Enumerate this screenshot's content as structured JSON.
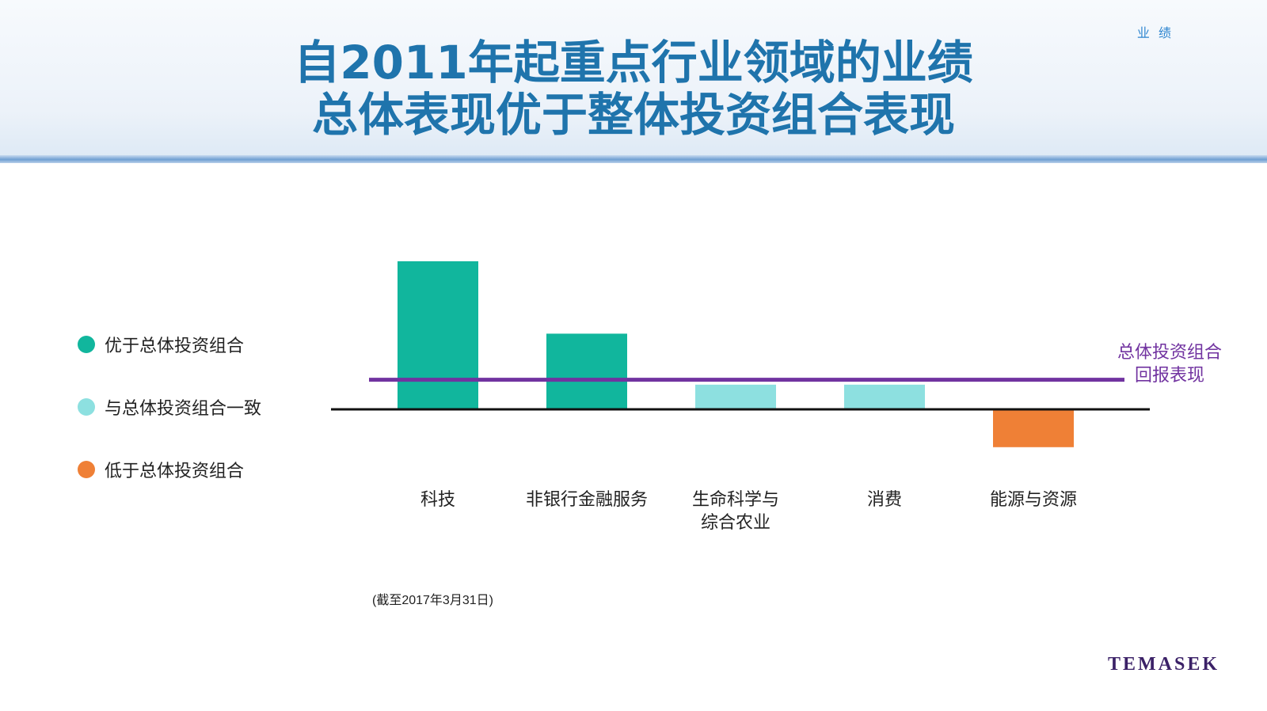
{
  "header": {
    "section_tag": "业 绩",
    "title_line1": "自2011年起重点行业领域的业绩",
    "title_line2": "总体表现优于整体投资组合表现"
  },
  "legend": [
    {
      "label": "优于总体投资组合",
      "color": "#11b69d"
    },
    {
      "label": "与总体投资组合一致",
      "color": "#8de0e0"
    },
    {
      "label": "低于总体投资组合",
      "color": "#ef8036"
    }
  ],
  "chart_data": {
    "type": "bar",
    "categories": [
      "科技",
      "非银行金融服务",
      "生命科学与\n综合农业",
      "消费",
      "能源与资源"
    ],
    "values": [
      180,
      92,
      30,
      30,
      -46
    ],
    "status": [
      "above",
      "above",
      "in_line",
      "in_line",
      "below"
    ],
    "colors": {
      "above": "#11b69d",
      "in_line": "#8de0e0",
      "below": "#ef8036",
      "benchmark": "#7133a0",
      "baseline": "#111111"
    },
    "benchmark": {
      "value": 36,
      "label": "总体投资组合\n回报表现"
    },
    "title": "",
    "xlabel": "",
    "ylabel": "",
    "ylim": [
      -60,
      200
    ],
    "axis_ticks": false,
    "grid": false,
    "legend_position": "left"
  },
  "footnote": "(截至2017年3月31日)",
  "brand": "TEMASEK"
}
